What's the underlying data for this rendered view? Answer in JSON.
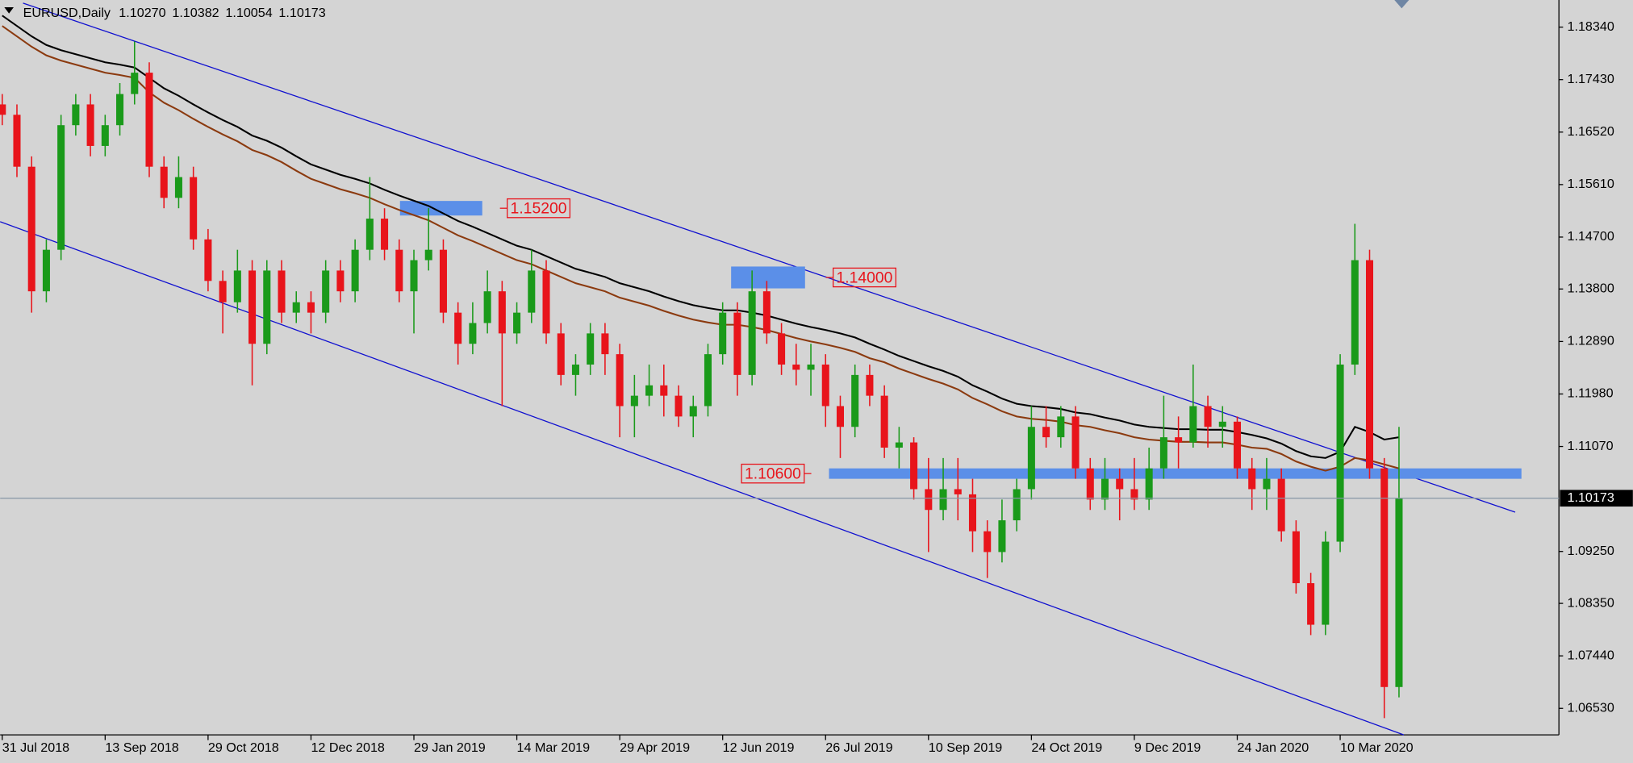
{
  "chart_data": {
    "type": "candlestick",
    "title": "EURUSD,Daily",
    "readout": [
      "1.10270",
      "1.10382",
      "1.10054",
      "1.10173"
    ],
    "categories": [
      "31 Jul 2018",
      null,
      null,
      null,
      null,
      null,
      null,
      "13 Sep 2018",
      null,
      null,
      null,
      null,
      null,
      null,
      "29 Oct 2018",
      null,
      null,
      null,
      null,
      null,
      null,
      "12 Dec 2018",
      null,
      null,
      null,
      null,
      null,
      null,
      "29 Jan 2019",
      null,
      null,
      null,
      null,
      null,
      null,
      "14 Mar 2019",
      null,
      null,
      null,
      null,
      null,
      null,
      "29 Apr 2019",
      null,
      null,
      null,
      null,
      null,
      null,
      "12 Jun 2019",
      null,
      null,
      null,
      null,
      null,
      null,
      "26 Jul 2019",
      null,
      null,
      null,
      null,
      null,
      null,
      "10 Sep 2019",
      null,
      null,
      null,
      null,
      null,
      null,
      "24 Oct 2019",
      null,
      null,
      null,
      null,
      null,
      null,
      "9 Dec 2019",
      null,
      null,
      null,
      null,
      null,
      null,
      "24 Jan 2020",
      null,
      null,
      null,
      null,
      null,
      null,
      "10 Mar 2020",
      null,
      null,
      null,
      null
    ],
    "open": [
      1.17,
      1.1682,
      1.1592,
      1.1376,
      1.1448,
      1.1664,
      1.17,
      1.1628,
      1.1664,
      1.1718,
      1.1755,
      1.1592,
      1.1538,
      1.1574,
      1.1466,
      1.1394,
      1.1357,
      1.1412,
      1.1285,
      1.1412,
      1.1339,
      1.1357,
      1.1339,
      1.1412,
      1.1376,
      1.1448,
      1.1502,
      1.1448,
      1.1376,
      1.143,
      1.1448,
      1.1339,
      1.1285,
      1.1321,
      1.1376,
      1.1303,
      1.1339,
      1.1412,
      1.1303,
      1.1231,
      1.1249,
      1.1303,
      1.1267,
      1.1177,
      1.1195,
      1.1213,
      1.1195,
      1.1159,
      1.1177,
      1.1267,
      1.1339,
      1.1231,
      1.1376,
      1.1303,
      1.1249,
      1.124,
      1.1249,
      1.1177,
      1.1141,
      1.1231,
      1.1195,
      1.1105,
      1.1114,
      1.1033,
      1.0997,
      1.1033,
      1.1024,
      1.096,
      1.0924,
      1.0979,
      1.1033,
      1.1141,
      1.1123,
      1.1159,
      1.1069,
      1.1015,
      1.1051,
      1.1033,
      1.1015,
      1.1069,
      1.1123,
      1.1114,
      1.1177,
      1.1141,
      1.115,
      1.1069,
      1.1033,
      1.1051,
      1.096,
      1.087,
      1.0798,
      1.0942,
      1.1249,
      1.143,
      1.1069,
      1.069
    ],
    "high": [
      1.1718,
      1.17,
      1.161,
      1.1466,
      1.1682,
      1.1718,
      1.1718,
      1.1682,
      1.1737,
      1.1809,
      1.1773,
      1.161,
      1.161,
      1.1592,
      1.1484,
      1.1412,
      1.1448,
      1.143,
      1.143,
      1.143,
      1.1376,
      1.1376,
      1.143,
      1.143,
      1.1466,
      1.1574,
      1.152,
      1.1466,
      1.1448,
      1.152,
      1.1466,
      1.1357,
      1.1357,
      1.1412,
      1.1394,
      1.1357,
      1.1448,
      1.143,
      1.1321,
      1.1267,
      1.1321,
      1.1321,
      1.1285,
      1.1231,
      1.1249,
      1.1249,
      1.1213,
      1.1195,
      1.1285,
      1.1357,
      1.1357,
      1.1412,
      1.1394,
      1.1321,
      1.1285,
      1.1285,
      1.1267,
      1.1195,
      1.1249,
      1.1249,
      1.1213,
      1.1141,
      1.1123,
      1.1087,
      1.1087,
      1.1087,
      1.1051,
      1.0979,
      1.1015,
      1.1051,
      1.1177,
      1.1177,
      1.1177,
      1.1177,
      1.1087,
      1.1087,
      1.1069,
      1.1087,
      1.1105,
      1.1195,
      1.1159,
      1.1249,
      1.1195,
      1.1177,
      1.1159,
      1.1087,
      1.1087,
      1.1069,
      1.0979,
      1.0888,
      1.096,
      1.1267,
      1.1493,
      1.1448,
      1.1087,
      1.1141
    ],
    "low": [
      1.1664,
      1.1574,
      1.1339,
      1.1357,
      1.143,
      1.1646,
      1.161,
      1.161,
      1.1646,
      1.17,
      1.1574,
      1.152,
      1.152,
      1.1448,
      1.1376,
      1.1303,
      1.1339,
      1.1213,
      1.1267,
      1.1321,
      1.1321,
      1.1303,
      1.1321,
      1.1357,
      1.1357,
      1.143,
      1.143,
      1.1357,
      1.1303,
      1.1412,
      1.1321,
      1.1249,
      1.1267,
      1.1303,
      1.1177,
      1.1285,
      1.1321,
      1.1285,
      1.1213,
      1.1195,
      1.1231,
      1.1231,
      1.1123,
      1.1123,
      1.1177,
      1.1159,
      1.1141,
      1.1123,
      1.1159,
      1.1249,
      1.1195,
      1.1213,
      1.1285,
      1.1231,
      1.1213,
      1.1195,
      1.1141,
      1.1087,
      1.1123,
      1.1177,
      1.1087,
      1.1069,
      1.1015,
      1.0924,
      1.0979,
      1.0979,
      1.0924,
      1.0879,
      1.0906,
      1.096,
      1.1015,
      1.1105,
      1.1105,
      1.1051,
      1.0997,
      1.0997,
      1.0979,
      1.0997,
      1.0997,
      1.1051,
      1.1069,
      1.1105,
      1.1105,
      1.1105,
      1.1051,
      1.0997,
      1.0997,
      1.0942,
      1.0852,
      1.078,
      1.078,
      1.0924,
      1.1231,
      1.1051,
      1.0636,
      1.0672
    ],
    "close": [
      1.1682,
      1.1592,
      1.1376,
      1.1448,
      1.1664,
      1.17,
      1.1628,
      1.1664,
      1.1718,
      1.1755,
      1.1592,
      1.1538,
      1.1574,
      1.1466,
      1.1394,
      1.1357,
      1.1412,
      1.1285,
      1.1412,
      1.1339,
      1.1357,
      1.1339,
      1.1412,
      1.1376,
      1.1448,
      1.1502,
      1.1448,
      1.1376,
      1.143,
      1.1448,
      1.1339,
      1.1285,
      1.1321,
      1.1376,
      1.1303,
      1.1339,
      1.1412,
      1.1303,
      1.1231,
      1.1249,
      1.1303,
      1.1267,
      1.1177,
      1.1195,
      1.1213,
      1.1195,
      1.1159,
      1.1177,
      1.1267,
      1.1339,
      1.1231,
      1.1376,
      1.1303,
      1.1249,
      1.124,
      1.1249,
      1.1177,
      1.1141,
      1.1231,
      1.1195,
      1.1105,
      1.1114,
      1.1033,
      1.0997,
      1.1033,
      1.1024,
      1.096,
      1.0924,
      1.0979,
      1.1033,
      1.1141,
      1.1123,
      1.1159,
      1.1069,
      1.1015,
      1.1051,
      1.1033,
      1.1015,
      1.1069,
      1.1123,
      1.1114,
      1.1177,
      1.1141,
      1.115,
      1.1069,
      1.1033,
      1.1051,
      1.096,
      1.087,
      1.0798,
      1.0942,
      1.1249,
      1.143,
      1.1069,
      1.069,
      1.1017
    ],
    "up_color": "#1a9a1a",
    "down_color": "#e8141b",
    "lines": [
      {
        "color": "#000000",
        "values": [
          1.1854,
          1.1836,
          1.1818,
          1.1803,
          1.1794,
          1.1787,
          1.178,
          1.1773,
          1.1769,
          1.1764,
          1.1746,
          1.1728,
          1.1715,
          1.17,
          1.1686,
          1.1673,
          1.1661,
          1.1646,
          1.1637,
          1.1625,
          1.161,
          1.1596,
          1.1587,
          1.1578,
          1.1571,
          1.1563,
          1.1552,
          1.1542,
          1.1533,
          1.1524,
          1.1511,
          1.1498,
          1.1488,
          1.1477,
          1.1466,
          1.1455,
          1.1448,
          1.1437,
          1.1426,
          1.1415,
          1.1408,
          1.1401,
          1.139,
          1.1383,
          1.1376,
          1.1367,
          1.1359,
          1.1352,
          1.1347,
          1.1343,
          1.1343,
          1.1339,
          1.1334,
          1.1327,
          1.132,
          1.1314,
          1.1309,
          1.1303,
          1.1296,
          1.1285,
          1.1275,
          1.1264,
          1.1255,
          1.1246,
          1.1238,
          1.1228,
          1.1213,
          1.1202,
          1.119,
          1.1181,
          1.1177,
          1.1175,
          1.1172,
          1.1166,
          1.1163,
          1.1157,
          1.1152,
          1.1145,
          1.1141,
          1.1139,
          1.1137,
          1.1137,
          1.1136,
          1.1136,
          1.1132,
          1.1127,
          1.1121,
          1.1112,
          1.1099,
          1.109,
          1.1087,
          1.1098,
          1.1141,
          1.1132,
          1.1119,
          1.1123
        ]
      },
      {
        "color": "#8b3a0f",
        "values": [
          1.1836,
          1.1818,
          1.18,
          1.1785,
          1.1776,
          1.1769,
          1.1762,
          1.1755,
          1.1751,
          1.1746,
          1.1721,
          1.1703,
          1.169,
          1.1675,
          1.1661,
          1.1648,
          1.1636,
          1.1621,
          1.1612,
          1.16,
          1.1585,
          1.1571,
          1.1562,
          1.1553,
          1.1546,
          1.1538,
          1.1527,
          1.1517,
          1.1508,
          1.1499,
          1.1486,
          1.1473,
          1.1463,
          1.1452,
          1.1441,
          1.143,
          1.1423,
          1.1412,
          1.1401,
          1.139,
          1.1383,
          1.1376,
          1.1365,
          1.1358,
          1.1351,
          1.1342,
          1.1334,
          1.1327,
          1.1322,
          1.1318,
          1.1318,
          1.1314,
          1.1309,
          1.1302,
          1.1295,
          1.1289,
          1.1284,
          1.1278,
          1.1271,
          1.126,
          1.1253,
          1.1242,
          1.1233,
          1.1224,
          1.1216,
          1.1206,
          1.1191,
          1.118,
          1.1168,
          1.1159,
          1.1155,
          1.1153,
          1.115,
          1.1144,
          1.1141,
          1.1135,
          1.113,
          1.1123,
          1.1119,
          1.1117,
          1.1115,
          1.1115,
          1.1114,
          1.1114,
          1.111,
          1.1105,
          1.1103,
          1.1094,
          1.1081,
          1.1072,
          1.1065,
          1.1072,
          1.1087,
          1.1083,
          1.1076,
          1.1069
        ]
      }
    ],
    "zones": [
      {
        "value": 1.152,
        "label": "1.15200",
        "color": "#5b8fe8"
      },
      {
        "value": 1.14,
        "label": "1.14000",
        "color": "#5b8fe8"
      },
      {
        "value": 1.106,
        "label": "1.10600",
        "color": "#5b8fe8"
      }
    ],
    "last_price": {
      "value": 1.10173,
      "label": "1.10173"
    },
    "ylim": [
      1.0607,
      1.1881
    ],
    "yticks": [
      {
        "value": 1.1834,
        "label": "1.18340"
      },
      {
        "value": 1.1743,
        "label": "1.17430"
      },
      {
        "value": 1.1652,
        "label": "1.16520"
      },
      {
        "value": 1.1561,
        "label": "1.15610"
      },
      {
        "value": 1.147,
        "label": "1.14700"
      },
      {
        "value": 1.138,
        "label": "1.13800"
      },
      {
        "value": 1.1289,
        "label": "1.12890"
      },
      {
        "value": 1.1198,
        "label": "1.11980"
      },
      {
        "value": 1.1107,
        "label": "1.11070"
      },
      {
        "value": 1.0925,
        "label": "1.09250"
      },
      {
        "value": 1.0835,
        "label": "1.08350"
      },
      {
        "value": 1.0744,
        "label": "1.07440"
      },
      {
        "value": 1.0653,
        "label": "1.06530"
      }
    ]
  }
}
